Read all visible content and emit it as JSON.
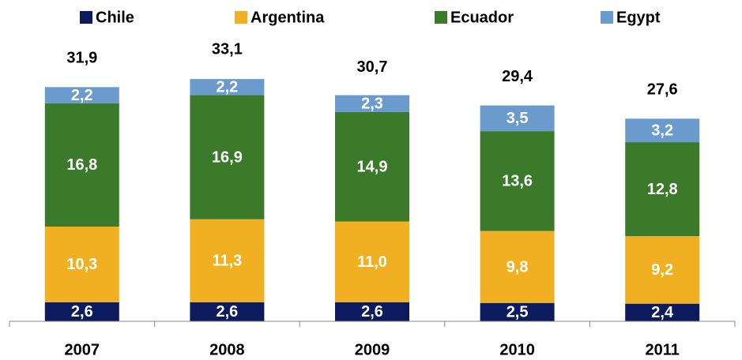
{
  "chart_data": {
    "type": "stacked-bar",
    "categories": [
      "2007",
      "2008",
      "2009",
      "2010",
      "2011"
    ],
    "series": [
      {
        "name": "Chile",
        "color": "#0c1a5e",
        "values": [
          2.6,
          2.6,
          2.6,
          2.5,
          2.4
        ],
        "value_labels": [
          "2,6",
          "2,6",
          "2,6",
          "2,5",
          "2,4"
        ]
      },
      {
        "name": "Argentina",
        "color": "#f0b022",
        "values": [
          10.3,
          11.3,
          11.0,
          9.8,
          9.2
        ],
        "value_labels": [
          "10,3",
          "11,3",
          "11,0",
          "9,8",
          "9,2"
        ]
      },
      {
        "name": "Ecuador",
        "color": "#3b7a2b",
        "values": [
          16.8,
          16.9,
          14.9,
          13.6,
          12.8
        ],
        "value_labels": [
          "16,8",
          "16,9",
          "14,9",
          "13,6",
          "12,8"
        ]
      },
      {
        "name": "Egypt",
        "color": "#6b9bcd",
        "values": [
          2.2,
          2.2,
          2.3,
          3.5,
          3.2
        ],
        "value_labels": [
          "2,2",
          "2,2",
          "2,3",
          "3,5",
          "3,2"
        ]
      }
    ],
    "totals": {
      "values": [
        31.9,
        33.1,
        30.7,
        29.4,
        27.6
      ],
      "value_labels": [
        "31,9",
        "33,1",
        "30,7",
        "29,4",
        "27,6"
      ]
    },
    "ylim": [
      0,
      40
    ],
    "legend": "top"
  }
}
